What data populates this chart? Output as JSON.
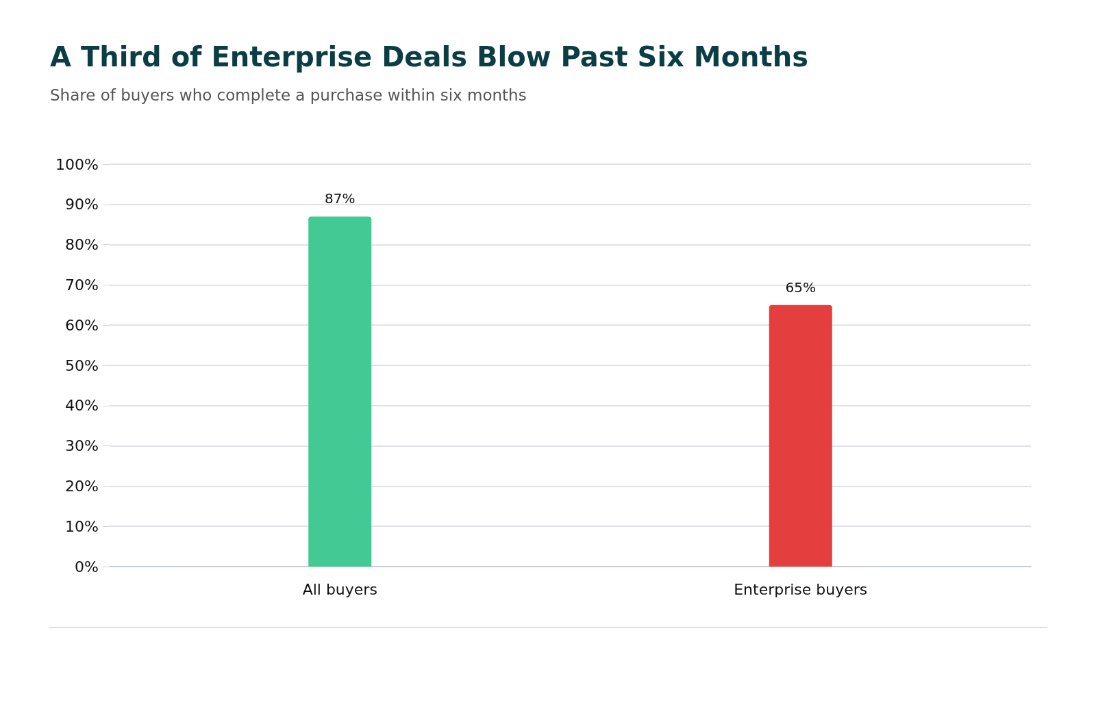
{
  "chart_data": {
    "type": "bar",
    "title": "A Third of Enterprise Deals Blow Past Six Months",
    "subtitle": "Share of buyers who complete a purchase within six months",
    "categories": [
      "All buyers",
      "Enterprise buyers"
    ],
    "values": [
      87,
      65
    ],
    "colors": [
      "#43c993",
      "#e53e3e"
    ],
    "value_labels": [
      "87%",
      "65%"
    ],
    "ylim": [
      0,
      100
    ],
    "yticks": [
      {
        "value": 0,
        "label": "0%"
      },
      {
        "value": 10,
        "label": "10%"
      },
      {
        "value": 20,
        "label": "20%"
      },
      {
        "value": 30,
        "label": "30%"
      },
      {
        "value": 40,
        "label": "40%"
      },
      {
        "value": 50,
        "label": "50%"
      },
      {
        "value": 60,
        "label": "60%"
      },
      {
        "value": 70,
        "label": "70%"
      },
      {
        "value": 80,
        "label": "80%"
      },
      {
        "value": 90,
        "label": "90%"
      },
      {
        "value": 100,
        "label": "100%"
      }
    ],
    "grid": "y"
  }
}
